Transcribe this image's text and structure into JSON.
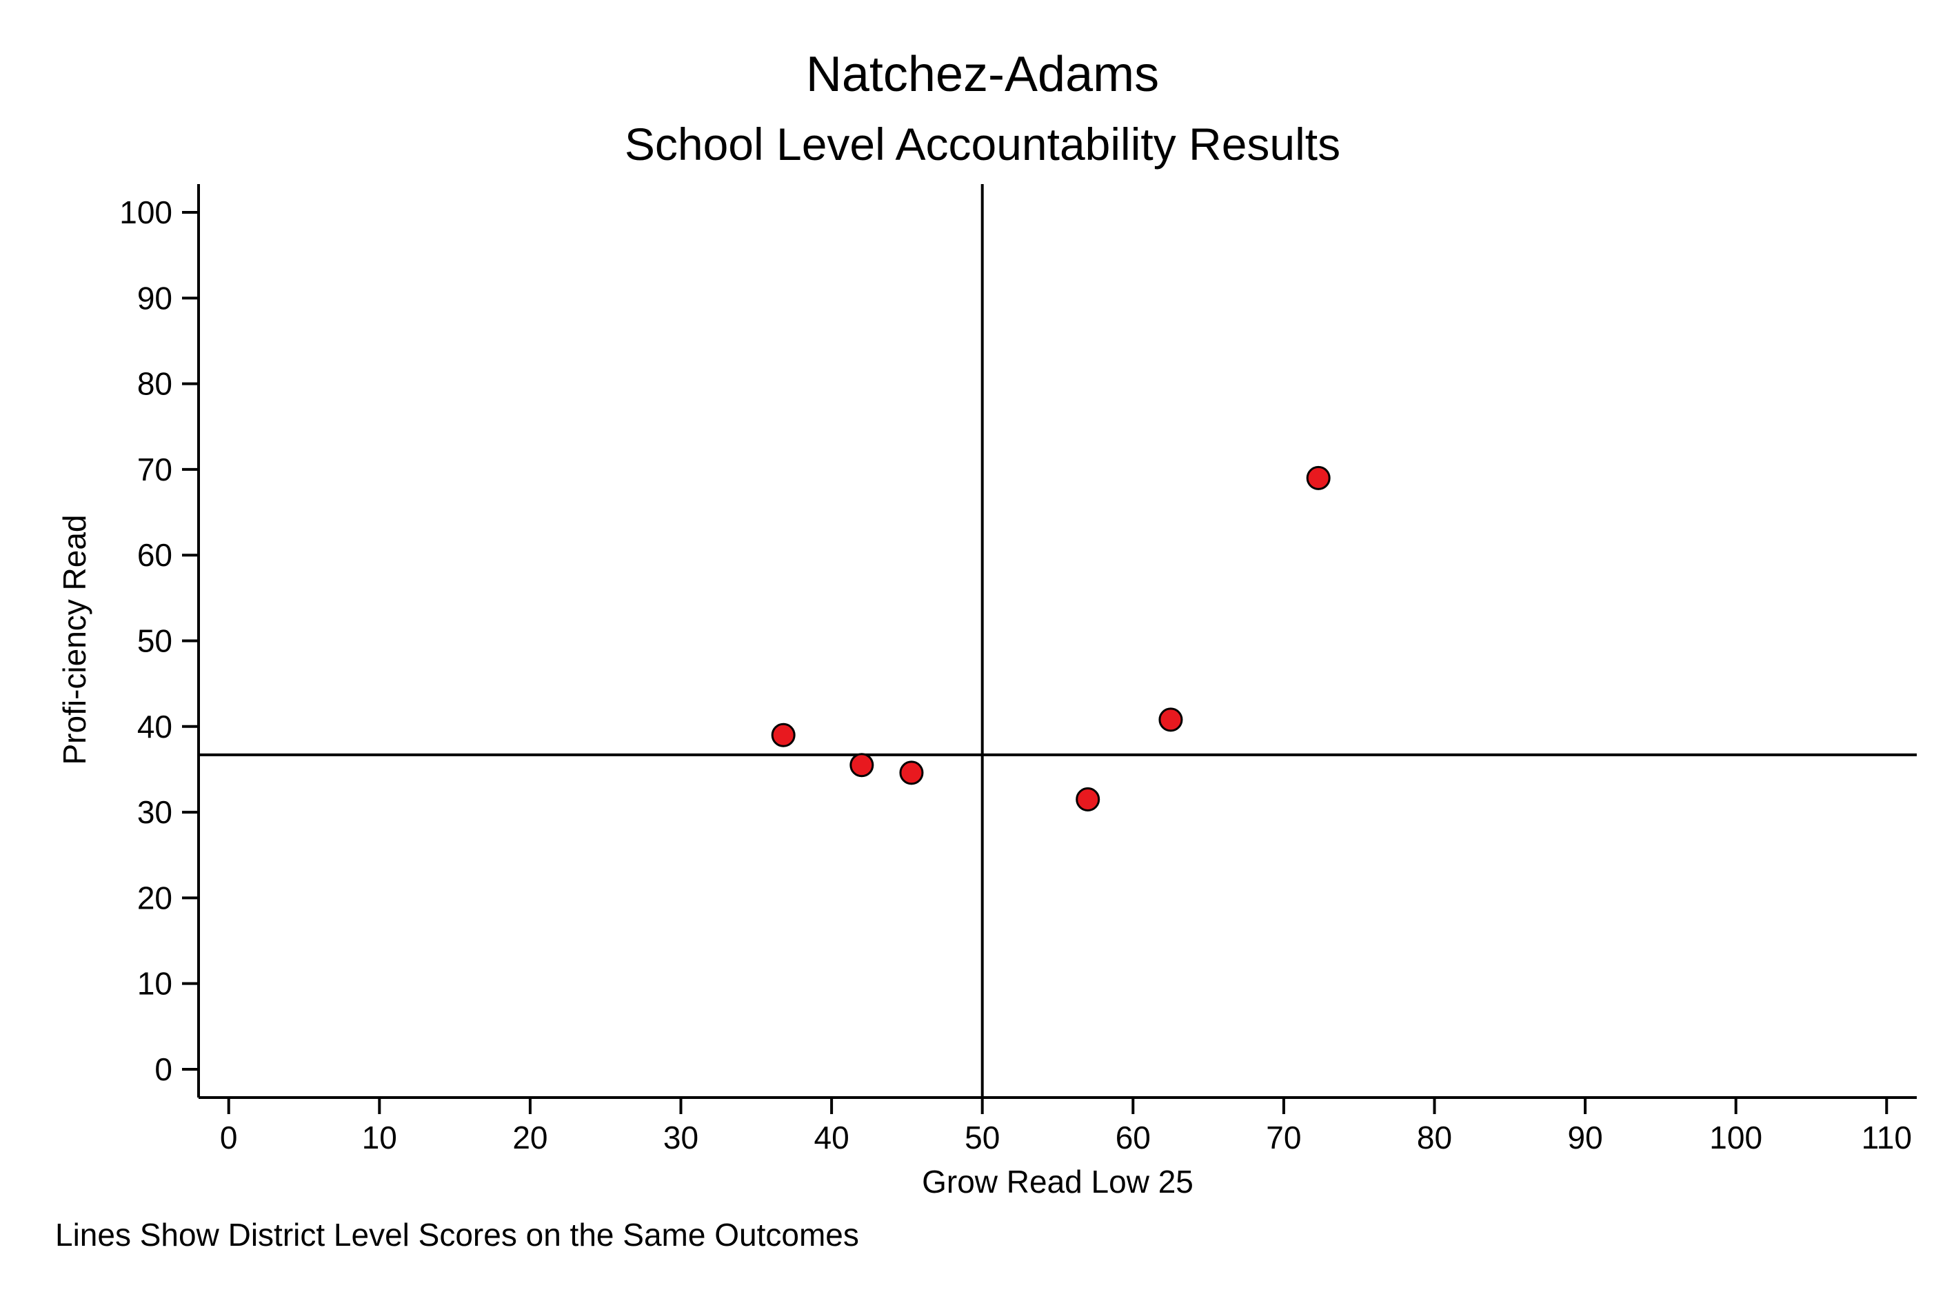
{
  "chart_data": {
    "type": "scatter",
    "title": "Natchez-Adams",
    "subtitle": "School Level Accountability Results",
    "xlabel": "Grow Read Low 25",
    "ylabel": "Profi-ciency Read",
    "note": "Lines Show District Level Scores on the Same Outcomes",
    "xlim": [
      -2,
      112
    ],
    "ylim": [
      -3.3,
      103.3
    ],
    "x_ticks": [
      0,
      10,
      20,
      30,
      40,
      50,
      60,
      70,
      80,
      90,
      100,
      110
    ],
    "y_ticks": [
      0,
      10,
      20,
      30,
      40,
      50,
      60,
      70,
      80,
      90,
      100
    ],
    "grid": false,
    "legend": "none",
    "reference_lines": {
      "x": 50,
      "y": 36.7
    },
    "points": [
      {
        "x": 36.8,
        "y": 39.0
      },
      {
        "x": 42.0,
        "y": 35.5
      },
      {
        "x": 45.3,
        "y": 34.6
      },
      {
        "x": 57.0,
        "y": 31.5
      },
      {
        "x": 62.5,
        "y": 40.8
      },
      {
        "x": 72.3,
        "y": 69.0
      }
    ],
    "colors": {
      "marker_fill": "#e8191f",
      "marker_edge": "#000000",
      "axis": "#000000",
      "background": "#ffffff"
    }
  }
}
